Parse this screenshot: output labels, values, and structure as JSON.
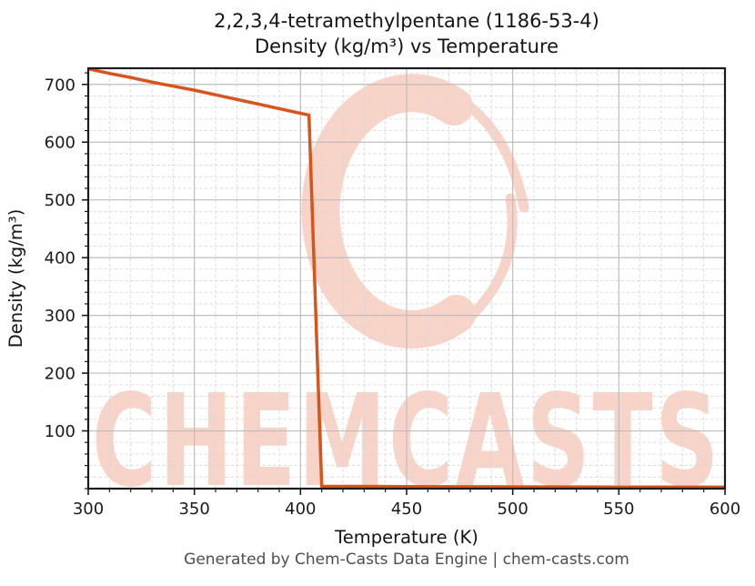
{
  "title": {
    "line1": "2,2,3,4-tetramethylpentane (1186-53-4)",
    "line2": "Density (kg/m³) vs Temperature"
  },
  "footer": {
    "text": "Generated by Chem-Casts Data Engine | chem-casts.com"
  },
  "watermark": {
    "text": "CHEMCASTS",
    "icon": "c-swirl-logo",
    "color": "#f8d3c7"
  },
  "colors": {
    "line": "#d9531c",
    "major_grid": "#bdbdbd",
    "minor_grid": "#d9d9d9",
    "spine": "#1c1c1c",
    "tick_label": "#1a1a1a",
    "title_text": "#141414",
    "footer_text": "#4d4d4d"
  },
  "chart_data": {
    "type": "line",
    "title": "2,2,3,4-tetramethylpentane (1186-53-4) Density (kg/m³) vs Temperature",
    "xlabel": "Temperature (K)",
    "ylabel": "Density (kg/m³)",
    "xlim": [
      300,
      600
    ],
    "ylim": [
      0,
      728
    ],
    "x_ticks": [
      300,
      350,
      400,
      450,
      500,
      550,
      600
    ],
    "y_ticks": [
      100,
      200,
      300,
      400,
      500,
      600,
      700
    ],
    "x_minor_step": 10,
    "y_minor_step": 20,
    "grid": {
      "major": "solid",
      "minor": "dashed"
    },
    "legend": null,
    "series": [
      {
        "name": "Density",
        "color": "#d9531c",
        "points": [
          [
            300,
            727
          ],
          [
            310,
            719
          ],
          [
            320,
            712
          ],
          [
            330,
            704
          ],
          [
            340,
            697
          ],
          [
            350,
            690
          ],
          [
            360,
            682
          ],
          [
            370,
            674
          ],
          [
            380,
            666
          ],
          [
            390,
            658
          ],
          [
            400,
            650
          ],
          [
            404,
            647
          ],
          [
            410,
            4.2
          ],
          [
            430,
            3.9
          ],
          [
            450,
            3.6
          ],
          [
            475,
            3.3
          ],
          [
            500,
            3.1
          ],
          [
            525,
            2.9
          ],
          [
            550,
            2.8
          ],
          [
            575,
            2.7
          ],
          [
            600,
            2.6
          ]
        ]
      }
    ]
  }
}
